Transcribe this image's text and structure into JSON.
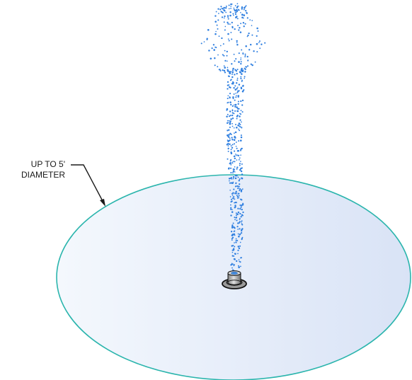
{
  "callout": {
    "line1": "UP TO 5'",
    "line2": "DIAMETER"
  },
  "colors": {
    "pool_edge": "#2bb5ad",
    "pool_fill_light": "#f4f8fd",
    "pool_fill_dark": "#d9e3f6",
    "spray": "#2f7fe0",
    "nozzle_outline": "#111111",
    "nozzle_body": "#bdbdbd",
    "nozzle_base": "#8a8a8a"
  },
  "icons": {
    "nozzle": "fountain-nozzle-icon",
    "arrow": "leader-arrow"
  }
}
